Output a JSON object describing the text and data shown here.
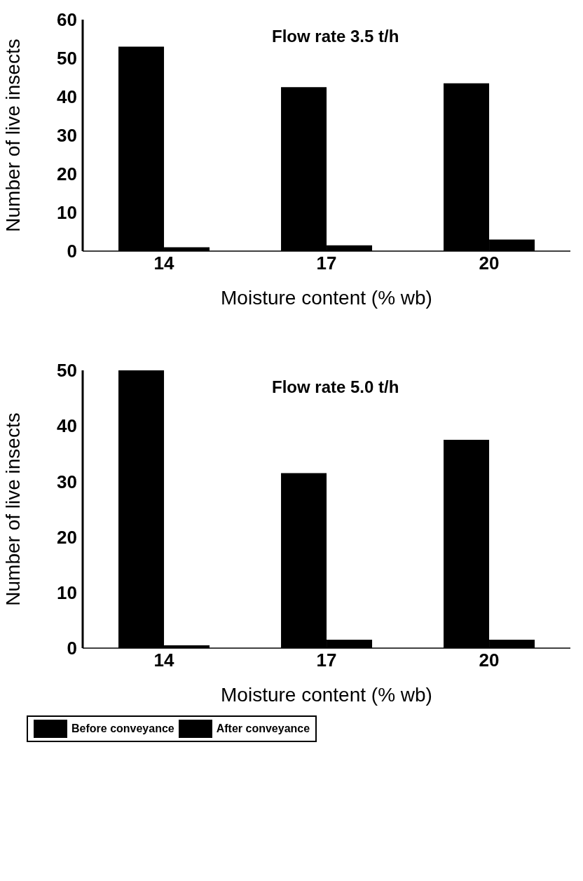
{
  "chart_data": [
    {
      "type": "bar",
      "title": "Flow rate 3.5 t/h",
      "xlabel": "Moisture content (% wb)",
      "ylabel": "Number of live insects",
      "categories": [
        "14",
        "17",
        "20"
      ],
      "series": [
        {
          "color": "#000000",
          "values": [
            53,
            42.5,
            43.5
          ]
        },
        {
          "color": "#000000",
          "values": [
            1,
            1.5,
            3
          ]
        }
      ],
      "ylim": [
        0,
        60
      ],
      "yticks": [
        0,
        10,
        20,
        30,
        40,
        50,
        60
      ],
      "grid": false,
      "legend": false
    },
    {
      "type": "bar",
      "title": "Flow rate 5.0 t/h",
      "xlabel": "Moisture content (% wb)",
      "ylabel": "Number of live insects",
      "categories": [
        "14",
        "17",
        "20"
      ],
      "series": [
        {
          "name": "Before conveyance",
          "color": "#000000",
          "values": [
            50,
            31.5,
            37.5
          ]
        },
        {
          "name": "After conveyance",
          "color": "#000000",
          "values": [
            0.5,
            1.5,
            1.5
          ]
        }
      ],
      "ylim": [
        0,
        50
      ],
      "yticks": [
        0,
        10,
        20,
        30,
        40,
        50
      ],
      "grid": false,
      "legend": "bottom"
    }
  ]
}
